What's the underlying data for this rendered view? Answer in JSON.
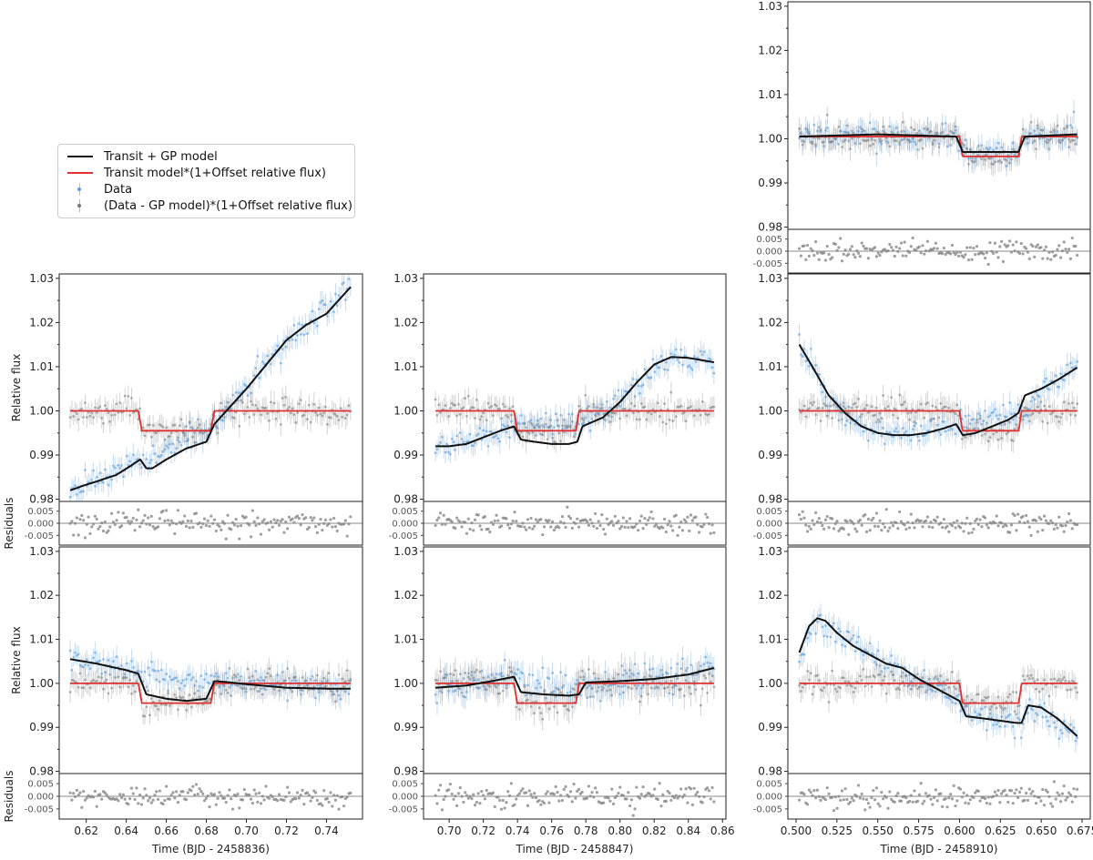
{
  "legend": {
    "items": [
      {
        "label": "Transit + GP model",
        "kind": "line",
        "color": "#111111"
      },
      {
        "label": "Transit model*(1+Offset relative flux)",
        "kind": "line",
        "color": "#e03030"
      },
      {
        "label": "Data",
        "kind": "errorbar",
        "color": "#5b9bd5"
      },
      {
        "label": "(Data - GP model)*(1+Offset relative flux)",
        "kind": "errorbar",
        "color": "#777777"
      }
    ]
  },
  "colors": {
    "data": "#5b9bd5",
    "detrended": "#808080",
    "gp": "#111111",
    "transit": "#e03030",
    "residual": "#7f7f7f",
    "zero_line": "#888888"
  },
  "chart_data": [
    {
      "id": "top-right",
      "type": "line",
      "row": 0,
      "col": 2,
      "xlim": [
        0.495,
        0.68
      ],
      "ylim": [
        0.9795,
        1.031
      ],
      "y_ticks": [
        "0.98",
        "0.99",
        "1.00",
        "1.01",
        "1.02",
        "1.03"
      ],
      "x_ticks": [],
      "xlabel": "",
      "ylabel": "",
      "resid_ylim": [
        -0.009,
        0.009
      ],
      "resid_ticks": [
        "0.005",
        "0.000",
        "-0.005"
      ],
      "transit": {
        "t1": 0.6,
        "t4": 0.638,
        "depth": 0.0045,
        "baseline": 1.0005
      },
      "gp_model": {
        "x": [
          0.502,
          0.55,
          0.598,
          0.602,
          0.636,
          0.64,
          0.672
        ],
        "y": [
          1.0005,
          1.001,
          1.0005,
          0.997,
          0.997,
          1.0005,
          1.001
        ]
      },
      "data_trend": {
        "x": [
          0.502,
          0.55,
          0.598,
          0.602,
          0.636,
          0.64,
          0.672
        ],
        "y": [
          1.0005,
          1.001,
          1.0005,
          0.997,
          0.997,
          1.0005,
          1.001
        ]
      },
      "noise": 0.0025,
      "resid_sigma": 0.0022,
      "seed": 11
    },
    {
      "id": "middle-left",
      "type": "line",
      "row": 1,
      "col": 0,
      "xlim": [
        0.6065,
        0.758
      ],
      "ylim": [
        0.9795,
        1.031
      ],
      "y_ticks": [
        "0.98",
        "0.99",
        "1.00",
        "1.01",
        "1.02",
        "1.03"
      ],
      "x_ticks": [],
      "xlabel": "",
      "ylabel": "Relative flux",
      "resid_ylim": [
        -0.009,
        0.009
      ],
      "resid_ticks": [
        "0.005",
        "0.000",
        "-0.005"
      ],
      "transit": {
        "t1": 0.646,
        "t4": 0.684,
        "depth": 0.0045,
        "baseline": 1.0
      },
      "gp_model": {
        "x": [
          0.612,
          0.618,
          0.625,
          0.635,
          0.642,
          0.647,
          0.65,
          0.653,
          0.66,
          0.67,
          0.68,
          0.684,
          0.69,
          0.7,
          0.71,
          0.72,
          0.73,
          0.74,
          0.752
        ],
        "y": [
          0.982,
          0.983,
          0.984,
          0.9855,
          0.9875,
          0.989,
          0.987,
          0.987,
          0.989,
          0.9915,
          0.993,
          0.997,
          1.0,
          1.005,
          1.0105,
          1.016,
          1.0195,
          1.022,
          1.028
        ]
      },
      "data_trend": {
        "x": [
          0.612,
          0.63,
          0.646,
          0.684,
          0.7,
          0.72,
          0.752
        ],
        "y": [
          0.982,
          0.985,
          0.9885,
          0.997,
          1.005,
          1.016,
          1.028
        ]
      },
      "noise": 0.0025,
      "resid_sigma": 0.0022,
      "seed": 23
    },
    {
      "id": "middle-center",
      "type": "line",
      "row": 1,
      "col": 1,
      "xlim": [
        0.685,
        0.862
      ],
      "ylim": [
        0.9795,
        1.031
      ],
      "y_ticks": [
        "0.98",
        "0.99",
        "1.00",
        "1.01",
        "1.02",
        "1.03"
      ],
      "x_ticks": [],
      "xlabel": "",
      "ylabel": "",
      "resid_ylim": [
        -0.009,
        0.009
      ],
      "resid_ticks": [
        "0.005",
        "0.000",
        "-0.005"
      ],
      "transit": {
        "t1": 0.738,
        "t4": 0.776,
        "depth": 0.0045,
        "baseline": 1.0
      },
      "gp_model": {
        "x": [
          0.692,
          0.7,
          0.71,
          0.72,
          0.73,
          0.738,
          0.742,
          0.75,
          0.76,
          0.77,
          0.775,
          0.778,
          0.79,
          0.8,
          0.81,
          0.82,
          0.83,
          0.84,
          0.855
        ],
        "y": [
          0.992,
          0.992,
          0.9925,
          0.994,
          0.9955,
          0.9965,
          0.9935,
          0.993,
          0.9925,
          0.9925,
          0.993,
          0.9965,
          0.9985,
          1.002,
          1.0065,
          1.0105,
          1.0122,
          1.012,
          1.011
        ]
      },
      "data_trend": {
        "x": [
          0.692,
          0.72,
          0.738,
          0.776,
          0.8,
          0.83,
          0.855
        ],
        "y": [
          0.992,
          0.994,
          0.9965,
          0.997,
          1.002,
          1.0122,
          1.011
        ]
      },
      "noise": 0.0025,
      "resid_sigma": 0.0022,
      "seed": 37
    },
    {
      "id": "middle-right",
      "type": "line",
      "row": 1,
      "col": 2,
      "xlim": [
        0.495,
        0.68
      ],
      "ylim": [
        0.9795,
        1.031
      ],
      "y_ticks": [
        "0.98",
        "0.99",
        "1.00",
        "1.01",
        "1.02",
        "1.03"
      ],
      "x_ticks": [],
      "xlabel": "",
      "ylabel": "",
      "resid_ylim": [
        -0.009,
        0.009
      ],
      "resid_ticks": [
        "0.005",
        "0.000",
        "-0.005"
      ],
      "transit": {
        "t1": 0.6,
        "t4": 0.638,
        "depth": 0.0045,
        "baseline": 1.0
      },
      "gp_model": {
        "x": [
          0.502,
          0.51,
          0.52,
          0.53,
          0.54,
          0.55,
          0.56,
          0.57,
          0.58,
          0.59,
          0.598,
          0.602,
          0.61,
          0.62,
          0.63,
          0.636,
          0.64,
          0.65,
          0.66,
          0.672
        ],
        "y": [
          1.015,
          1.01,
          1.0035,
          0.9995,
          0.9965,
          0.995,
          0.9945,
          0.9945,
          0.995,
          0.996,
          0.997,
          0.9945,
          0.995,
          0.9965,
          0.998,
          0.9995,
          1.0035,
          1.005,
          1.007,
          1.0098
        ]
      },
      "data_trend": {
        "x": [
          0.502,
          0.52,
          0.54,
          0.56,
          0.58,
          0.6,
          0.638,
          0.65,
          0.672
        ],
        "y": [
          1.015,
          1.0035,
          0.9965,
          0.9945,
          0.995,
          0.9965,
          0.9995,
          1.005,
          1.0098
        ]
      },
      "noise": 0.0025,
      "resid_sigma": 0.0022,
      "seed": 41
    },
    {
      "id": "bottom-left",
      "type": "line",
      "row": 2,
      "col": 0,
      "xlim": [
        0.6065,
        0.758
      ],
      "ylim": [
        0.9795,
        1.031
      ],
      "y_ticks": [
        "0.98",
        "0.99",
        "1.00",
        "1.01",
        "1.02",
        "1.03"
      ],
      "x_ticks": [
        "0.62",
        "0.64",
        "0.66",
        "0.68",
        "0.70",
        "0.72",
        "0.74"
      ],
      "xlabel": "Time (BJD - 2458836)",
      "ylabel": "Relative flux",
      "resid_ylim": [
        -0.009,
        0.009
      ],
      "resid_ticks": [
        "0.005",
        "0.000",
        "-0.005"
      ],
      "transit": {
        "t1": 0.646,
        "t4": 0.684,
        "depth": 0.0045,
        "baseline": 1.0
      },
      "gp_model": {
        "x": [
          0.612,
          0.625,
          0.64,
          0.646,
          0.65,
          0.66,
          0.67,
          0.68,
          0.684,
          0.69,
          0.7,
          0.72,
          0.74,
          0.752
        ],
        "y": [
          1.0055,
          1.0045,
          1.003,
          1.0022,
          0.9975,
          0.9965,
          0.996,
          0.9965,
          1.0005,
          1.0003,
          0.9998,
          0.999,
          0.9988,
          0.9988
        ]
      },
      "data_trend": {
        "x": [
          0.612,
          0.646,
          0.684,
          0.752
        ],
        "y": [
          1.0055,
          1.0022,
          1.0005,
          0.9988
        ]
      },
      "noise": 0.0025,
      "resid_sigma": 0.0022,
      "seed": 53
    },
    {
      "id": "bottom-center",
      "type": "line",
      "row": 2,
      "col": 1,
      "xlim": [
        0.685,
        0.862
      ],
      "ylim": [
        0.9795,
        1.031
      ],
      "y_ticks": [
        "0.98",
        "0.99",
        "1.00",
        "1.01",
        "1.02",
        "1.03"
      ],
      "x_ticks": [
        "0.70",
        "0.72",
        "0.74",
        "0.76",
        "0.78",
        "0.80",
        "0.82",
        "0.84",
        "0.86"
      ],
      "xlabel": "Time (BJD - 2458847)",
      "ylabel": "",
      "resid_ylim": [
        -0.009,
        0.009
      ],
      "resid_ticks": [
        "0.005",
        "0.000",
        "-0.005"
      ],
      "transit": {
        "t1": 0.738,
        "t4": 0.776,
        "depth": 0.0045,
        "baseline": 1.0
      },
      "gp_model": {
        "x": [
          0.692,
          0.71,
          0.725,
          0.738,
          0.742,
          0.755,
          0.77,
          0.776,
          0.78,
          0.8,
          0.82,
          0.84,
          0.855
        ],
        "y": [
          0.999,
          0.9995,
          1.0005,
          1.0015,
          0.998,
          0.9975,
          0.9972,
          0.9975,
          1.0002,
          1.0005,
          1.001,
          1.002,
          1.0035
        ]
      },
      "data_trend": {
        "x": [
          0.692,
          0.738,
          0.776,
          0.855
        ],
        "y": [
          0.999,
          1.0015,
          0.9975,
          1.0035
        ]
      },
      "noise": 0.0028,
      "resid_sigma": 0.0022,
      "seed": 67
    },
    {
      "id": "bottom-right",
      "type": "line",
      "row": 2,
      "col": 2,
      "xlim": [
        0.495,
        0.68
      ],
      "ylim": [
        0.9795,
        1.031
      ],
      "y_ticks": [
        "0.98",
        "0.99",
        "1.00",
        "1.01",
        "1.02",
        "1.03"
      ],
      "x_ticks": [
        "0.500",
        "0.525",
        "0.550",
        "0.575",
        "0.600",
        "0.625",
        "0.650",
        "0.675"
      ],
      "xlabel": "Time (BJD - 2458910)",
      "ylabel": "",
      "resid_ylim": [
        -0.009,
        0.009
      ],
      "resid_ticks": [
        "0.005",
        "0.000",
        "-0.005"
      ],
      "transit": {
        "t1": 0.6,
        "t4": 0.638,
        "depth": 0.0045,
        "baseline": 1.0
      },
      "gp_model": {
        "x": [
          0.502,
          0.508,
          0.513,
          0.518,
          0.525,
          0.535,
          0.545,
          0.555,
          0.565,
          0.575,
          0.585,
          0.595,
          0.6,
          0.604,
          0.615,
          0.625,
          0.635,
          0.638,
          0.642,
          0.65,
          0.66,
          0.672
        ],
        "y": [
          1.007,
          1.013,
          1.0148,
          1.0142,
          1.0115,
          1.0085,
          1.0065,
          1.0045,
          1.0035,
          1.001,
          0.999,
          0.997,
          0.996,
          0.9925,
          0.992,
          0.9915,
          0.991,
          0.991,
          0.995,
          0.9945,
          0.992,
          0.988
        ]
      },
      "data_trend": {
        "x": [
          0.502,
          0.513,
          0.545,
          0.575,
          0.6,
          0.604,
          0.638,
          0.642,
          0.672
        ],
        "y": [
          1.007,
          1.0148,
          1.0065,
          1.001,
          0.996,
          0.9925,
          0.991,
          0.995,
          0.988
        ]
      },
      "noise": 0.0025,
      "resid_sigma": 0.0022,
      "seed": 79
    }
  ]
}
